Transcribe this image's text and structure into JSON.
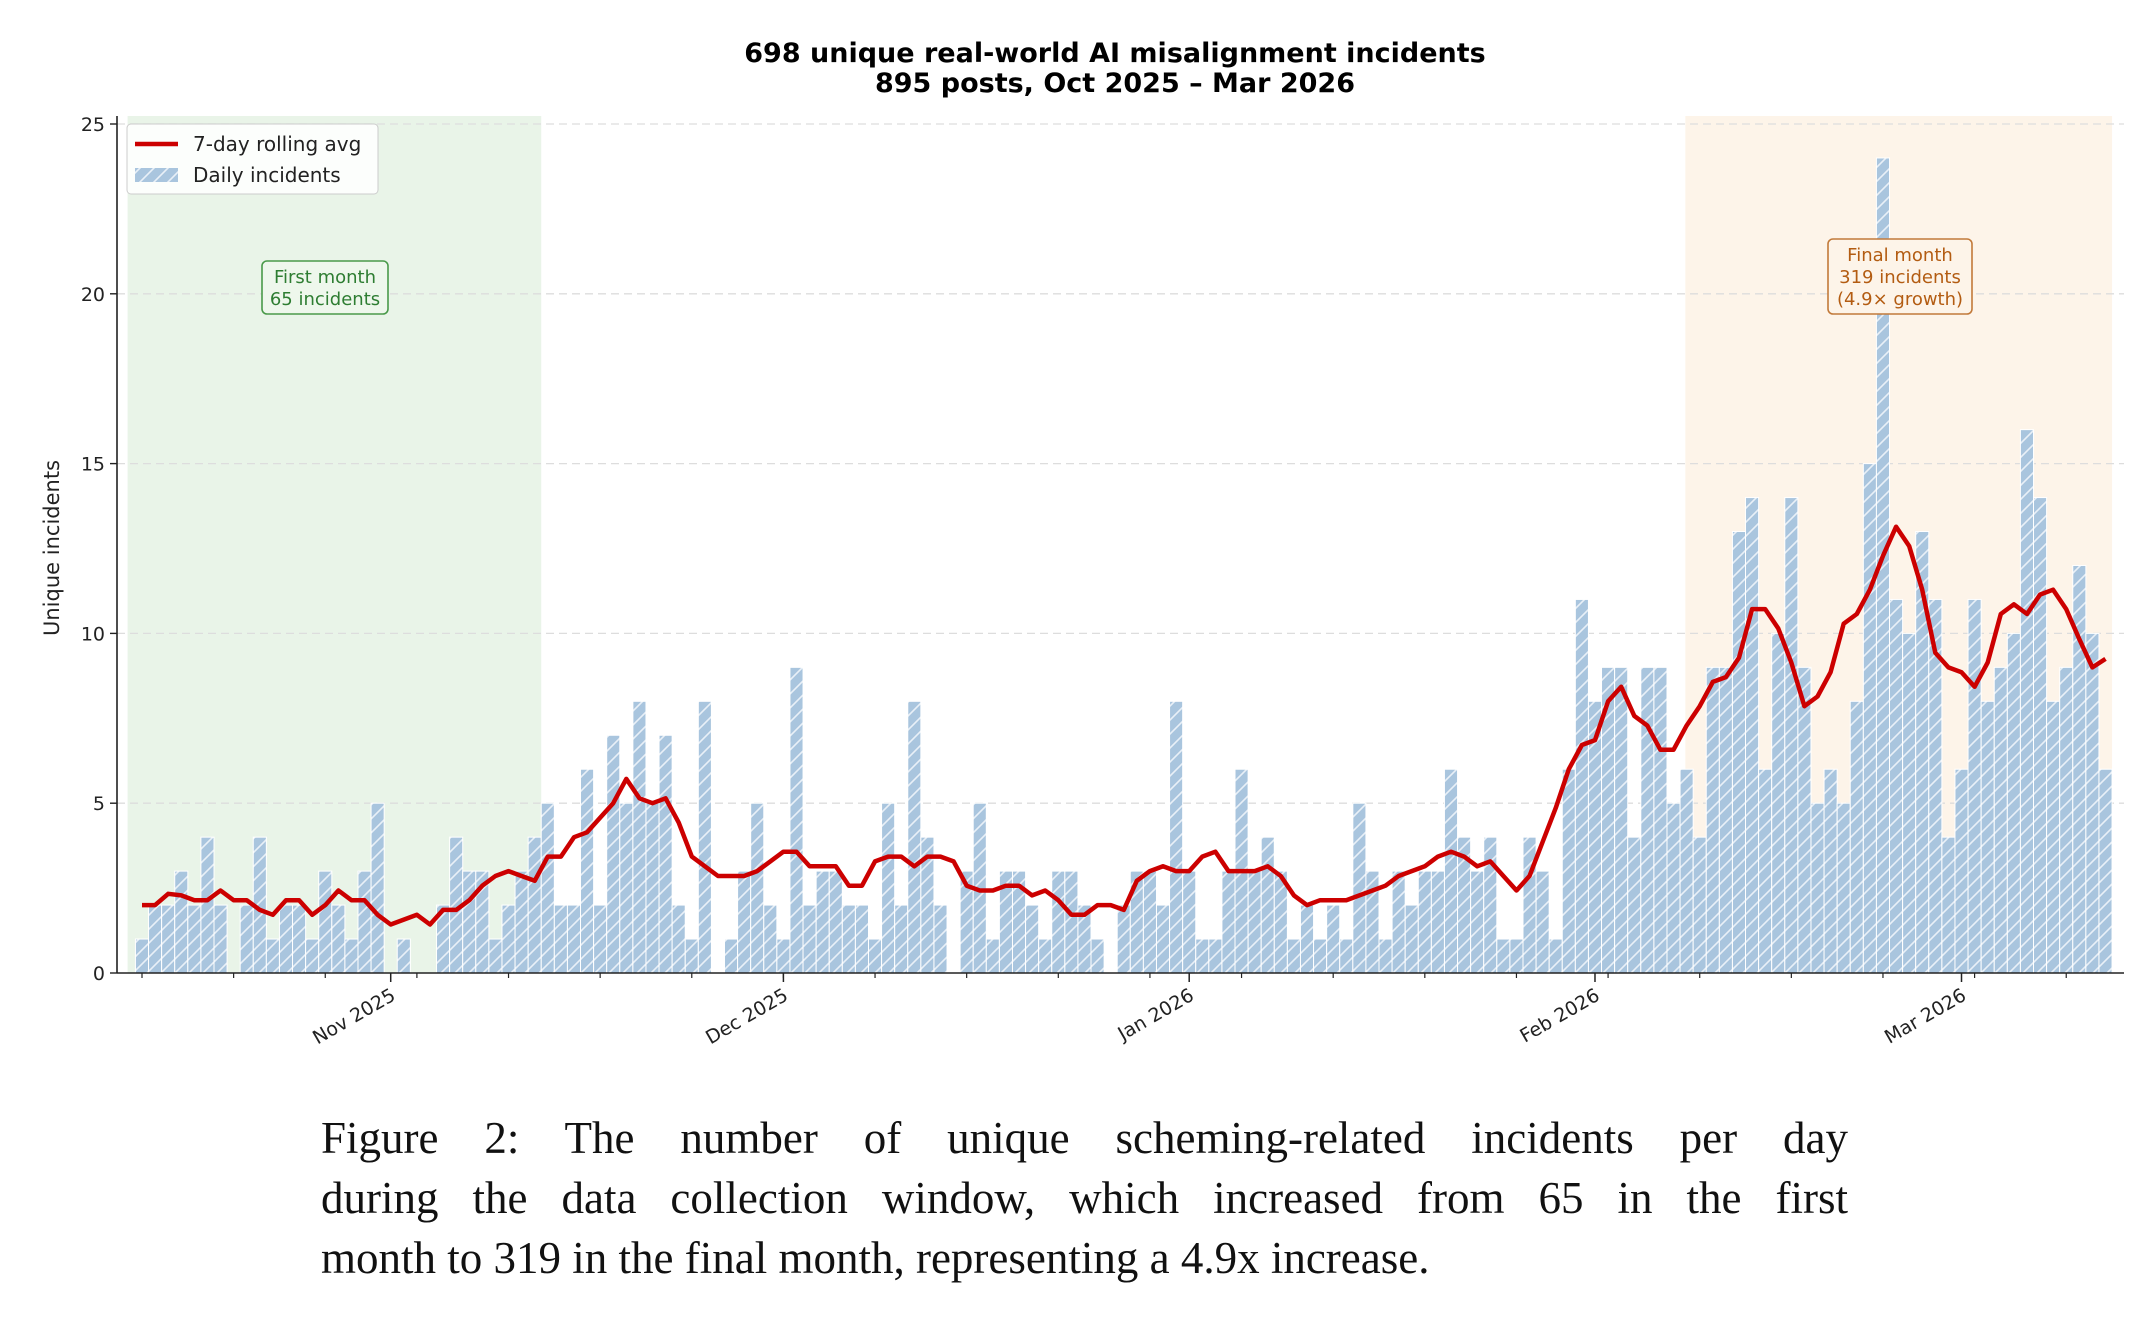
{
  "chart_data": {
    "type": "bar",
    "title": "698 unique real-world AI misalignment incidents",
    "subtitle": "895 posts, Oct 2025 – Mar 2026",
    "ylabel": "Unique incidents",
    "xlabel": "",
    "ylim": [
      0,
      25
    ],
    "y_ticks": [
      0,
      5,
      10,
      15,
      20,
      25
    ],
    "x_ticks": [
      {
        "date": "2025-11-01",
        "label": "Nov 2025"
      },
      {
        "date": "2025-12-01",
        "label": "Dec 2025"
      },
      {
        "date": "2026-01-01",
        "label": "Jan 2026"
      },
      {
        "date": "2026-02-01",
        "label": "Feb 2026"
      },
      {
        "date": "2026-03-01",
        "label": "Mar 2026"
      }
    ],
    "grid": "horizontal dashed",
    "legend_position": "top-left",
    "legend": [
      "7-day rolling avg",
      "Daily incidents"
    ],
    "series": [
      {
        "name": "Daily incidents",
        "type": "bar",
        "color": "#a9c5de",
        "hatch": "/",
        "x": [
          "2025-10-13",
          "2025-10-14",
          "2025-10-15",
          "2025-10-16",
          "2025-10-17",
          "2025-10-18",
          "2025-10-19",
          "2025-10-20",
          "2025-10-21",
          "2025-10-22",
          "2025-10-23",
          "2025-10-24",
          "2025-10-25",
          "2025-10-26",
          "2025-10-27",
          "2025-10-28",
          "2025-10-29",
          "2025-10-30",
          "2025-10-31",
          "2025-11-01",
          "2025-11-02",
          "2025-11-03",
          "2025-11-04",
          "2025-11-05",
          "2025-11-06",
          "2025-11-07",
          "2025-11-08",
          "2025-11-09",
          "2025-11-10",
          "2025-11-11",
          "2025-11-12",
          "2025-11-13",
          "2025-11-14",
          "2025-11-15",
          "2025-11-16",
          "2025-11-17",
          "2025-11-18",
          "2025-11-19",
          "2025-11-20",
          "2025-11-21",
          "2025-11-22",
          "2025-11-23",
          "2025-11-24",
          "2025-11-25",
          "2025-11-26",
          "2025-11-27",
          "2025-11-28",
          "2025-11-29",
          "2025-11-30",
          "2025-12-01",
          "2025-12-02",
          "2025-12-03",
          "2025-12-04",
          "2025-12-05",
          "2025-12-06",
          "2025-12-07",
          "2025-12-08",
          "2025-12-09",
          "2025-12-10",
          "2025-12-11",
          "2025-12-12",
          "2025-12-13",
          "2025-12-14",
          "2025-12-15",
          "2025-12-16",
          "2025-12-17",
          "2025-12-18",
          "2025-12-19",
          "2025-12-20",
          "2025-12-21",
          "2025-12-22",
          "2025-12-23",
          "2025-12-24",
          "2025-12-25",
          "2025-12-26",
          "2025-12-27",
          "2025-12-28",
          "2025-12-29",
          "2025-12-30",
          "2025-12-31",
          "2026-01-01",
          "2026-01-02",
          "2026-01-03",
          "2026-01-04",
          "2026-01-05",
          "2026-01-06",
          "2026-01-07",
          "2026-01-08",
          "2026-01-09",
          "2026-01-10",
          "2026-01-11",
          "2026-01-12",
          "2026-01-13",
          "2026-01-14",
          "2026-01-15",
          "2026-01-16",
          "2026-01-17",
          "2026-01-18",
          "2026-01-19",
          "2026-01-20",
          "2026-01-21",
          "2026-01-22",
          "2026-01-23",
          "2026-01-24",
          "2026-01-25",
          "2026-01-26",
          "2026-01-27",
          "2026-01-28",
          "2026-01-29",
          "2026-01-30",
          "2026-01-31",
          "2026-02-01",
          "2026-02-02",
          "2026-02-03",
          "2026-02-04",
          "2026-02-05",
          "2026-02-06",
          "2026-02-07",
          "2026-02-08",
          "2026-02-09",
          "2026-02-10",
          "2026-02-11",
          "2026-02-12",
          "2026-02-13",
          "2026-02-14",
          "2026-02-15",
          "2026-02-16",
          "2026-02-17",
          "2026-02-18",
          "2026-02-19",
          "2026-02-20",
          "2026-02-21",
          "2026-02-22",
          "2026-02-23",
          "2026-02-24",
          "2026-02-25",
          "2026-02-26",
          "2026-02-27",
          "2026-02-28",
          "2026-03-01",
          "2026-03-02",
          "2026-03-03",
          "2026-03-04",
          "2026-03-05",
          "2026-03-06",
          "2026-03-07",
          "2026-03-08",
          "2026-03-09",
          "2026-03-10",
          "2026-03-11",
          "2026-03-12"
        ],
        "values": [
          1,
          2,
          2,
          3,
          2,
          4,
          2,
          0,
          2,
          4,
          1,
          2,
          2,
          1,
          3,
          2,
          1,
          3,
          5,
          0,
          1,
          0,
          0,
          2,
          4,
          3,
          3,
          1,
          2,
          3,
          4,
          5,
          2,
          2,
          6,
          2,
          7,
          5,
          8,
          5,
          7,
          2,
          1,
          8,
          0,
          1,
          3,
          5,
          2,
          1,
          9,
          2,
          3,
          3,
          2,
          2,
          1,
          5,
          2,
          8,
          4,
          2,
          0,
          3,
          5,
          1,
          3,
          3,
          2,
          1,
          3,
          3,
          2,
          1,
          0,
          2,
          3,
          3,
          2,
          8,
          3,
          1,
          1,
          3,
          6,
          3,
          4,
          3,
          1,
          2,
          1,
          2,
          1,
          5,
          3,
          1,
          3,
          2,
          3,
          3,
          6,
          4,
          3,
          4,
          1,
          1,
          4,
          3,
          1,
          6,
          11,
          8,
          9,
          9,
          4,
          9,
          9,
          5,
          6,
          4,
          9,
          9,
          13,
          14,
          6,
          10,
          14,
          9,
          5,
          6,
          5,
          8,
          15,
          24,
          11,
          10,
          13,
          11,
          4,
          6,
          11,
          8,
          9,
          10,
          16,
          14,
          8,
          9,
          12,
          10,
          6
        ]
      },
      {
        "name": "7-day rolling avg",
        "type": "line",
        "color": "#cc0000",
        "rolling_window_days": 7,
        "of": "Daily incidents"
      }
    ],
    "shaded_regions": [
      {
        "from": "2025-10-13",
        "to": "2025-11-12",
        "color": "#e9f4e8",
        "label_lines": [
          "First month",
          "65 incidents"
        ],
        "text_color": "#2e7d32",
        "border_color": "#4a9a4a",
        "box_color": "#eef7ec"
      },
      {
        "from": "2026-02-09",
        "to": "2026-03-12",
        "color": "#fdf4e9",
        "label_lines": [
          "Final month",
          "319 incidents",
          "(4.9× growth)"
        ],
        "text_color": "#b35c12",
        "border_color": "#c27a3a",
        "box_color": "#fdf4e9"
      }
    ]
  },
  "caption": {
    "lines": [
      "Figure 2:  The number of unique scheming-related incidents per day",
      "during the data collection window, which increased from 65 in the first",
      "month to 319 in the final month, representing a 4.9x increase."
    ]
  }
}
